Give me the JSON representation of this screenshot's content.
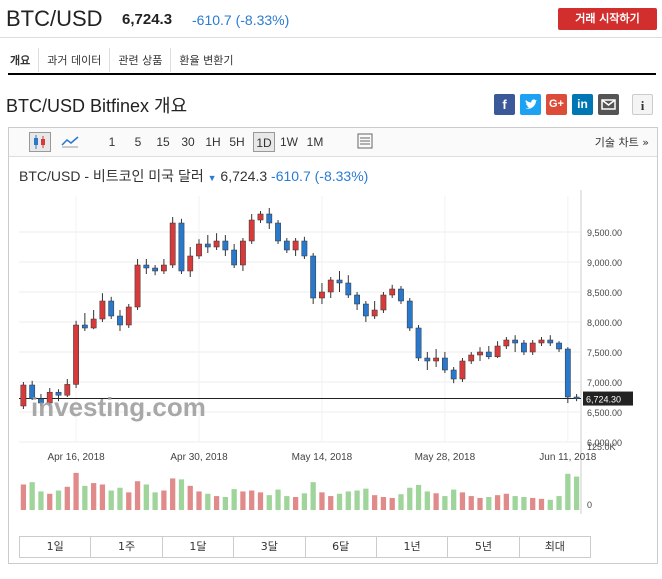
{
  "header": {
    "symbol": "BTC/USD",
    "price": "6,724.3",
    "change": "-610.7 (-8.33%)",
    "trade_button": "거래 시작하기"
  },
  "subnav": [
    "개요",
    "과거 데이터",
    "관련 상품",
    "환율 변환기"
  ],
  "page_title": "BTC/USD Bitfinex 개요",
  "share_icons": [
    "facebook-icon",
    "twitter-icon",
    "google-plus-icon",
    "linkedin-icon",
    "email-icon",
    "info-icon"
  ],
  "toolbar": {
    "intervals": [
      "1",
      "5",
      "15",
      "30",
      "1H",
      "5H",
      "1D",
      "1W",
      "1M"
    ],
    "selected": "1D",
    "tech_chart": "기술 차트 »"
  },
  "quote_line": {
    "name": "BTC/USD - 비트코인 미국 달러",
    "price": "6,724.3",
    "change": "-610.7 (-8.33%)"
  },
  "watermark": "investing.com",
  "range_buttons": [
    "1일",
    "1주",
    "1달",
    "3달",
    "6달",
    "1년",
    "5년",
    "최대"
  ],
  "colors": {
    "up": "#d63a3a",
    "down": "#2a78cc",
    "vol_up": "#e08a8a",
    "vol_down": "#9fd49a",
    "change": "#2a7bd3",
    "trade_btn": "#d32e2e"
  },
  "chart_data": {
    "type": "candlestick",
    "ylim": [
      6000,
      10100
    ],
    "ytick_labels": [
      "9,500.00",
      "9,000.00",
      "8,500.00",
      "8,000.00",
      "7,500.00",
      "7,000.00",
      "6,500.00",
      "6,000.00"
    ],
    "yticks": [
      9500,
      9000,
      8500,
      8000,
      7500,
      7000,
      6500,
      6000
    ],
    "last_price_label": "6,724.30",
    "last_price": 6724.3,
    "x_labels": [
      "Apr 16, 2018",
      "Apr 30, 2018",
      "May 14, 2018",
      "May 28, 2018",
      "Jun 11, 2018"
    ],
    "x_label_index": [
      6,
      20,
      34,
      48,
      62
    ],
    "volume_label": "125.0K",
    "volume_zero_label": "0",
    "volume_max": 125,
    "candles": [
      {
        "o": 6600,
        "c": 6950,
        "h": 7000,
        "l": 6550,
        "v": 55
      },
      {
        "o": 6950,
        "c": 6720,
        "h": 7020,
        "l": 6700,
        "v": 60
      },
      {
        "o": 6720,
        "c": 6650,
        "h": 6800,
        "l": 6600,
        "v": 40
      },
      {
        "o": 6650,
        "c": 6830,
        "h": 6900,
        "l": 6620,
        "v": 35
      },
      {
        "o": 6830,
        "c": 6780,
        "h": 6880,
        "l": 6680,
        "v": 42
      },
      {
        "o": 6780,
        "c": 6960,
        "h": 7050,
        "l": 6750,
        "v": 50
      },
      {
        "o": 6960,
        "c": 7950,
        "h": 8020,
        "l": 6900,
        "v": 80
      },
      {
        "o": 7950,
        "c": 7900,
        "h": 8150,
        "l": 7850,
        "v": 52
      },
      {
        "o": 7900,
        "c": 8050,
        "h": 8200,
        "l": 7880,
        "v": 58
      },
      {
        "o": 8050,
        "c": 8350,
        "h": 8480,
        "l": 8000,
        "v": 55
      },
      {
        "o": 8350,
        "c": 8100,
        "h": 8420,
        "l": 8050,
        "v": 42
      },
      {
        "o": 8100,
        "c": 7950,
        "h": 8200,
        "l": 7850,
        "v": 48
      },
      {
        "o": 7950,
        "c": 8250,
        "h": 8300,
        "l": 7900,
        "v": 38
      },
      {
        "o": 8250,
        "c": 8950,
        "h": 9050,
        "l": 8200,
        "v": 62
      },
      {
        "o": 8950,
        "c": 8900,
        "h": 9050,
        "l": 8800,
        "v": 55
      },
      {
        "o": 8900,
        "c": 8850,
        "h": 8950,
        "l": 8780,
        "v": 38
      },
      {
        "o": 8850,
        "c": 8950,
        "h": 9050,
        "l": 8800,
        "v": 42
      },
      {
        "o": 8950,
        "c": 9650,
        "h": 9750,
        "l": 8900,
        "v": 68
      },
      {
        "o": 9650,
        "c": 8850,
        "h": 9720,
        "l": 8800,
        "v": 66
      },
      {
        "o": 8850,
        "c": 9100,
        "h": 9250,
        "l": 8750,
        "v": 52
      },
      {
        "o": 9100,
        "c": 9300,
        "h": 9380,
        "l": 9050,
        "v": 40
      },
      {
        "o": 9300,
        "c": 9250,
        "h": 9450,
        "l": 9150,
        "v": 35
      },
      {
        "o": 9250,
        "c": 9350,
        "h": 9480,
        "l": 9200,
        "v": 30
      },
      {
        "o": 9350,
        "c": 9200,
        "h": 9450,
        "l": 9100,
        "v": 28
      },
      {
        "o": 9200,
        "c": 8950,
        "h": 9300,
        "l": 8900,
        "v": 45
      },
      {
        "o": 8950,
        "c": 9350,
        "h": 9400,
        "l": 8850,
        "v": 40
      },
      {
        "o": 9350,
        "c": 9700,
        "h": 9800,
        "l": 9300,
        "v": 42
      },
      {
        "o": 9700,
        "c": 9800,
        "h": 9850,
        "l": 9650,
        "v": 38
      },
      {
        "o": 9800,
        "c": 9650,
        "h": 9900,
        "l": 9550,
        "v": 32
      },
      {
        "o": 9650,
        "c": 9350,
        "h": 9700,
        "l": 9300,
        "v": 44
      },
      {
        "o": 9350,
        "c": 9200,
        "h": 9400,
        "l": 9150,
        "v": 30
      },
      {
        "o": 9200,
        "c": 9350,
        "h": 9400,
        "l": 9100,
        "v": 28
      },
      {
        "o": 9350,
        "c": 9100,
        "h": 9420,
        "l": 9050,
        "v": 36
      },
      {
        "o": 9100,
        "c": 8400,
        "h": 9150,
        "l": 8300,
        "v": 60
      },
      {
        "o": 8400,
        "c": 8500,
        "h": 8650,
        "l": 8300,
        "v": 38
      },
      {
        "o": 8500,
        "c": 8700,
        "h": 8750,
        "l": 8400,
        "v": 30
      },
      {
        "o": 8700,
        "c": 8650,
        "h": 8850,
        "l": 8500,
        "v": 35
      },
      {
        "o": 8650,
        "c": 8450,
        "h": 8780,
        "l": 8400,
        "v": 40
      },
      {
        "o": 8450,
        "c": 8300,
        "h": 8500,
        "l": 8200,
        "v": 42
      },
      {
        "o": 8300,
        "c": 8100,
        "h": 8350,
        "l": 8000,
        "v": 46
      },
      {
        "o": 8100,
        "c": 8200,
        "h": 8350,
        "l": 8050,
        "v": 32
      },
      {
        "o": 8200,
        "c": 8450,
        "h": 8500,
        "l": 8150,
        "v": 28
      },
      {
        "o": 8450,
        "c": 8550,
        "h": 8620,
        "l": 8400,
        "v": 26
      },
      {
        "o": 8550,
        "c": 8350,
        "h": 8600,
        "l": 8300,
        "v": 34
      },
      {
        "o": 8350,
        "c": 7900,
        "h": 8400,
        "l": 7850,
        "v": 48
      },
      {
        "o": 7900,
        "c": 7400,
        "h": 7950,
        "l": 7350,
        "v": 54
      },
      {
        "o": 7400,
        "c": 7350,
        "h": 7500,
        "l": 7200,
        "v": 40
      },
      {
        "o": 7350,
        "c": 7400,
        "h": 7550,
        "l": 7250,
        "v": 36
      },
      {
        "o": 7400,
        "c": 7200,
        "h": 7500,
        "l": 7150,
        "v": 30
      },
      {
        "o": 7200,
        "c": 7050,
        "h": 7250,
        "l": 6980,
        "v": 44
      },
      {
        "o": 7050,
        "c": 7350,
        "h": 7400,
        "l": 7000,
        "v": 38
      },
      {
        "o": 7350,
        "c": 7450,
        "h": 7500,
        "l": 7300,
        "v": 30
      },
      {
        "o": 7450,
        "c": 7500,
        "h": 7580,
        "l": 7350,
        "v": 26
      },
      {
        "o": 7500,
        "c": 7420,
        "h": 7600,
        "l": 7380,
        "v": 28
      },
      {
        "o": 7420,
        "c": 7600,
        "h": 7680,
        "l": 7400,
        "v": 32
      },
      {
        "o": 7600,
        "c": 7700,
        "h": 7750,
        "l": 7550,
        "v": 35
      },
      {
        "o": 7700,
        "c": 7650,
        "h": 7780,
        "l": 7500,
        "v": 30
      },
      {
        "o": 7650,
        "c": 7500,
        "h": 7700,
        "l": 7450,
        "v": 28
      },
      {
        "o": 7500,
        "c": 7650,
        "h": 7700,
        "l": 7450,
        "v": 26
      },
      {
        "o": 7650,
        "c": 7700,
        "h": 7750,
        "l": 7600,
        "v": 24
      },
      {
        "o": 7700,
        "c": 7650,
        "h": 7780,
        "l": 7600,
        "v": 22
      },
      {
        "o": 7650,
        "c": 7550,
        "h": 7680,
        "l": 7500,
        "v": 30
      },
      {
        "o": 7550,
        "c": 6750,
        "h": 7580,
        "l": 6650,
        "v": 78
      },
      {
        "o": 6750,
        "c": 6724,
        "h": 6800,
        "l": 6680,
        "v": 72
      }
    ]
  }
}
